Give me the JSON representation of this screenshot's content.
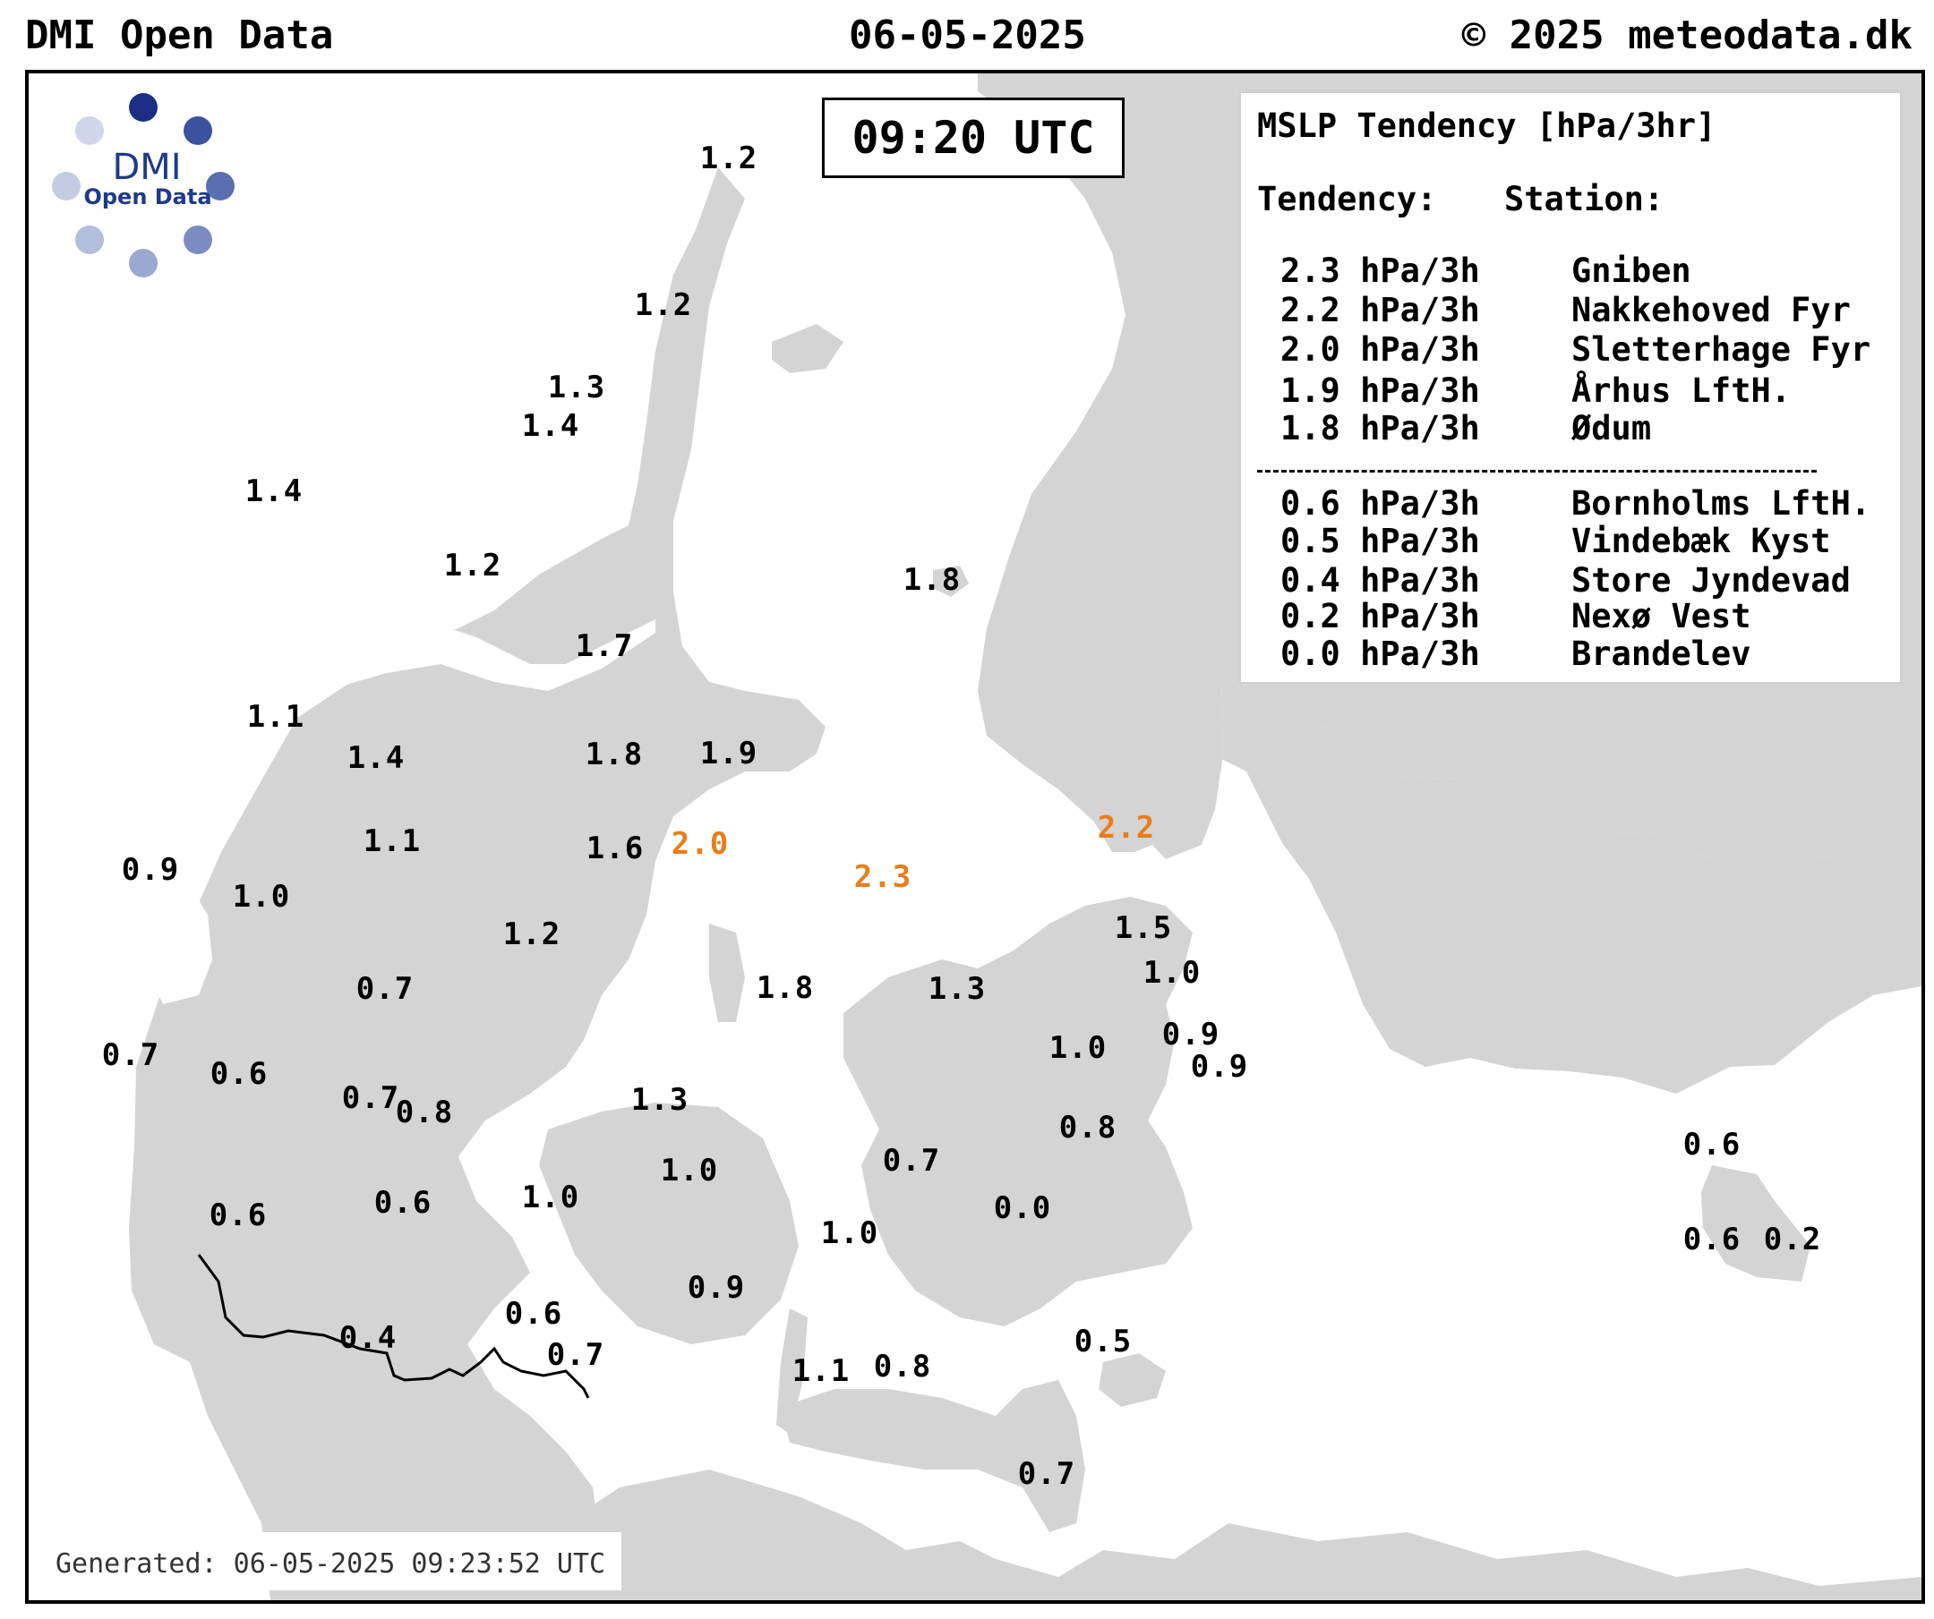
{
  "header": {
    "left": "DMI Open Data",
    "center": "06-05-2025",
    "right": "© 2025 meteodata.dk"
  },
  "time_box": "09:20 UTC",
  "logo": {
    "name": "DMI",
    "sub": "Open Data"
  },
  "legend": {
    "title": "MSLP Tendency [hPa/3hr]",
    "col_tendency": "Tendency:",
    "col_station": "Station:",
    "top": [
      {
        "value": "2.3 hPa/3h",
        "station": "Gniben"
      },
      {
        "value": "2.2 hPa/3h",
        "station": "Nakkehoved Fyr"
      },
      {
        "value": "2.0 hPa/3h",
        "station": "Sletterhage Fyr"
      },
      {
        "value": "1.9 hPa/3h",
        "station": "Århus LftH."
      },
      {
        "value": "1.8 hPa/3h",
        "station": "Ødum"
      }
    ],
    "bottom": [
      {
        "value": "0.6 hPa/3h",
        "station": "Bornholms LftH."
      },
      {
        "value": "0.5 hPa/3h",
        "station": "Vindebæk Kyst"
      },
      {
        "value": "0.4 hPa/3h",
        "station": "Store Jyndevad"
      },
      {
        "value": "0.2 hPa/3h",
        "station": "Nexø Vest"
      },
      {
        "value": "0.0 hPa/3h",
        "station": "Brandelev"
      }
    ]
  },
  "colors": {
    "land": "#d4d4d4",
    "highlight": "#e87e1a",
    "logo_dark": "#1a2f84"
  },
  "stations": [
    {
      "value": "1.2",
      "highlight": false
    },
    {
      "value": "1.2",
      "highlight": false
    },
    {
      "value": "1.3",
      "highlight": false
    },
    {
      "value": "1.4",
      "highlight": false
    },
    {
      "value": "1.4",
      "highlight": false
    },
    {
      "value": "1.2",
      "highlight": false
    },
    {
      "value": "1.8",
      "highlight": false
    },
    {
      "value": "1.7",
      "highlight": false
    },
    {
      "value": "1.1",
      "highlight": false
    },
    {
      "value": "1.4",
      "highlight": false
    },
    {
      "value": "1.8",
      "highlight": false
    },
    {
      "value": "1.9",
      "highlight": false
    },
    {
      "value": "2.2",
      "highlight": true
    },
    {
      "value": "1.1",
      "highlight": false
    },
    {
      "value": "0.9",
      "highlight": false
    },
    {
      "value": "1.0",
      "highlight": false
    },
    {
      "value": "1.6",
      "highlight": false
    },
    {
      "value": "2.0",
      "highlight": true
    },
    {
      "value": "2.3",
      "highlight": true
    },
    {
      "value": "1.5",
      "highlight": false
    },
    {
      "value": "1.2",
      "highlight": false
    },
    {
      "value": "1.0",
      "highlight": false
    },
    {
      "value": "0.7",
      "highlight": false
    },
    {
      "value": "1.8",
      "highlight": false
    },
    {
      "value": "1.3",
      "highlight": false
    },
    {
      "value": "0.9",
      "highlight": false
    },
    {
      "value": "1.0",
      "highlight": false
    },
    {
      "value": "0.9",
      "highlight": false
    },
    {
      "value": "0.7",
      "highlight": false
    },
    {
      "value": "0.6",
      "highlight": false
    },
    {
      "value": "0.7",
      "highlight": false
    },
    {
      "value": "0.8",
      "highlight": false
    },
    {
      "value": "1.3",
      "highlight": false
    },
    {
      "value": "0.8",
      "highlight": false
    },
    {
      "value": "0.6",
      "highlight": false
    },
    {
      "value": "0.7",
      "highlight": false
    },
    {
      "value": "1.0",
      "highlight": false
    },
    {
      "value": "0.6",
      "highlight": false
    },
    {
      "value": "1.0",
      "highlight": false
    },
    {
      "value": "0.0",
      "highlight": false
    },
    {
      "value": "0.6",
      "highlight": false
    },
    {
      "value": "1.0",
      "highlight": false
    },
    {
      "value": "0.6",
      "highlight": false
    },
    {
      "value": "0.2",
      "highlight": false
    },
    {
      "value": "0.9",
      "highlight": false
    },
    {
      "value": "0.6",
      "highlight": false
    },
    {
      "value": "0.4",
      "highlight": false
    },
    {
      "value": "0.7",
      "highlight": false
    },
    {
      "value": "0.5",
      "highlight": false
    },
    {
      "value": "1.1",
      "highlight": false
    },
    {
      "value": "0.8",
      "highlight": false
    },
    {
      "value": "0.7",
      "highlight": false
    }
  ],
  "generated": "Generated: 06-05-2025 09:23:52 UTC"
}
